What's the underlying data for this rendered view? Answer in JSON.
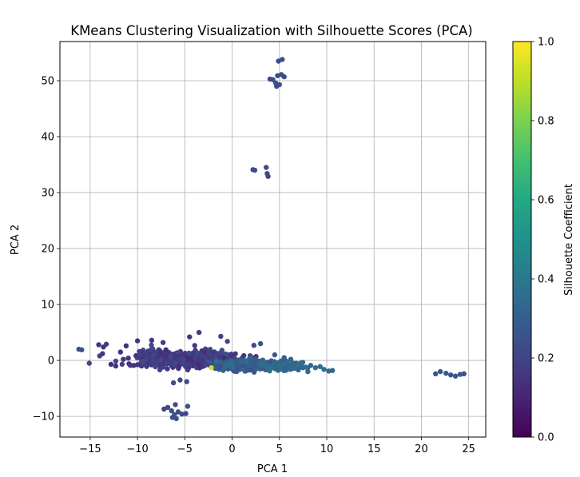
{
  "chart_data": {
    "type": "scatter",
    "title": "KMeans Clustering Visualization with Silhouette Scores (PCA)",
    "xlabel": "PCA 1",
    "ylabel": "PCA 2",
    "xlim": [
      -18.2,
      26.8
    ],
    "ylim": [
      -13.7,
      57.0
    ],
    "xticks": [
      -15,
      -10,
      -5,
      0,
      5,
      10,
      15,
      20,
      25
    ],
    "xtick_labels": [
      "−15",
      "−10",
      "−5",
      "0",
      "5",
      "10",
      "15",
      "20",
      "25"
    ],
    "yticks": [
      -10,
      0,
      10,
      20,
      30,
      40,
      50
    ],
    "ytick_labels": [
      "−10",
      "0",
      "10",
      "20",
      "30",
      "40",
      "50"
    ],
    "grid": true,
    "colormap": "viridis",
    "colorbar": {
      "label": "Silhouette Coefficient",
      "range": [
        0.0,
        1.0
      ],
      "ticks": [
        0.0,
        0.2,
        0.4,
        0.6,
        0.8,
        1.0
      ],
      "tick_labels": [
        "0.0",
        "0.2",
        "0.4",
        "0.6",
        "0.8",
        "1.0"
      ]
    },
    "points": [
      {
        "x": 4.9,
        "y": 53.5,
        "c": 0.22
      },
      {
        "x": 5.3,
        "y": 53.8,
        "c": 0.24
      },
      {
        "x": 4.3,
        "y": 50.2,
        "c": 0.23
      },
      {
        "x": 4.8,
        "y": 50.9,
        "c": 0.21
      },
      {
        "x": 5.5,
        "y": 50.7,
        "c": 0.22
      },
      {
        "x": 4.6,
        "y": 49.6,
        "c": 0.25
      },
      {
        "x": 5.0,
        "y": 49.3,
        "c": 0.23
      },
      {
        "x": 4.0,
        "y": 50.3,
        "c": 0.2
      },
      {
        "x": 5.2,
        "y": 51.1,
        "c": 0.24
      },
      {
        "x": 4.7,
        "y": 49.0,
        "c": 0.22
      },
      {
        "x": 2.2,
        "y": 34.1,
        "c": 0.22
      },
      {
        "x": 2.4,
        "y": 34.0,
        "c": 0.23
      },
      {
        "x": 3.6,
        "y": 34.5,
        "c": 0.21
      },
      {
        "x": 3.7,
        "y": 33.4,
        "c": 0.24
      },
      {
        "x": 3.8,
        "y": 32.9,
        "c": 0.22
      },
      {
        "x": -16.2,
        "y": 2.0,
        "c": 0.26
      },
      {
        "x": -15.9,
        "y": 1.9,
        "c": 0.24
      },
      {
        "x": -15.1,
        "y": -0.5,
        "c": 0.22
      },
      {
        "x": -14.1,
        "y": 2.8,
        "c": 0.15
      },
      {
        "x": -13.6,
        "y": 2.4,
        "c": 0.14
      },
      {
        "x": -13.3,
        "y": 2.9,
        "c": 0.18
      },
      {
        "x": -13.7,
        "y": 1.2,
        "c": 0.16
      },
      {
        "x": -14.0,
        "y": 0.8,
        "c": 0.18
      },
      {
        "x": -12.8,
        "y": -0.7,
        "c": 0.12
      },
      {
        "x": -12.3,
        "y": -1.0,
        "c": 0.14
      },
      {
        "x": -11.8,
        "y": 1.5,
        "c": 0.15
      },
      {
        "x": -11.2,
        "y": 2.6,
        "c": 0.13
      },
      {
        "x": -11.5,
        "y": 0.2,
        "c": 0.16
      },
      {
        "x": -10.9,
        "y": -0.6,
        "c": 0.15
      },
      {
        "x": -10.4,
        "y": -0.9,
        "c": 0.14
      },
      {
        "x": -10.0,
        "y": 3.5,
        "c": 0.16
      },
      {
        "x": 21.5,
        "y": -2.4,
        "c": 0.26
      },
      {
        "x": 22.0,
        "y": -2.0,
        "c": 0.27
      },
      {
        "x": 22.6,
        "y": -2.3,
        "c": 0.28
      },
      {
        "x": 23.1,
        "y": -2.6,
        "c": 0.26
      },
      {
        "x": 23.6,
        "y": -2.8,
        "c": 0.27
      },
      {
        "x": 24.1,
        "y": -2.5,
        "c": 0.28
      },
      {
        "x": 24.5,
        "y": -2.4,
        "c": 0.26
      },
      {
        "x": -7.2,
        "y": -8.7,
        "c": 0.22
      },
      {
        "x": -6.8,
        "y": -8.4,
        "c": 0.21
      },
      {
        "x": -6.4,
        "y": -9.0,
        "c": 0.24
      },
      {
        "x": -6.0,
        "y": -7.9,
        "c": 0.23
      },
      {
        "x": -5.7,
        "y": -9.2,
        "c": 0.22
      },
      {
        "x": -6.1,
        "y": -9.7,
        "c": 0.26
      },
      {
        "x": -5.9,
        "y": -10.4,
        "c": 0.25
      },
      {
        "x": -6.3,
        "y": -10.2,
        "c": 0.23
      },
      {
        "x": -5.3,
        "y": -9.6,
        "c": 0.22
      },
      {
        "x": -4.7,
        "y": -8.2,
        "c": 0.24
      },
      {
        "x": -4.9,
        "y": -9.5,
        "c": 0.21
      },
      {
        "x": 6.5,
        "y": -0.8,
        "c": 0.34
      },
      {
        "x": 7.2,
        "y": -0.5,
        "c": 0.35
      },
      {
        "x": 7.8,
        "y": -1.2,
        "c": 0.36
      },
      {
        "x": 8.3,
        "y": -0.9,
        "c": 0.33
      },
      {
        "x": 8.8,
        "y": -1.3,
        "c": 0.35
      },
      {
        "x": 9.3,
        "y": -1.1,
        "c": 0.36
      },
      {
        "x": 9.7,
        "y": -1.6,
        "c": 0.34
      },
      {
        "x": 10.2,
        "y": -1.9,
        "c": 0.35
      },
      {
        "x": 10.6,
        "y": -1.8,
        "c": 0.33
      },
      {
        "x": 7.0,
        "y": -1.7,
        "c": 0.32
      },
      {
        "x": 8.0,
        "y": -2.0,
        "c": 0.34
      },
      {
        "x": 6.0,
        "y": -1.5,
        "c": 0.33
      },
      {
        "x": 5.5,
        "y": 0.5,
        "c": 0.31
      },
      {
        "x": 6.2,
        "y": 0.2,
        "c": 0.32
      },
      {
        "x": 3.0,
        "y": 3.0,
        "c": 0.25
      },
      {
        "x": 2.3,
        "y": 2.7,
        "c": 0.22
      },
      {
        "x": 4.5,
        "y": 1.0,
        "c": 0.28
      },
      {
        "x": -3.5,
        "y": 5.0,
        "c": 0.18
      },
      {
        "x": -4.5,
        "y": 4.2,
        "c": 0.16
      },
      {
        "x": -1.2,
        "y": 4.3,
        "c": 0.19
      },
      {
        "x": -0.5,
        "y": 3.4,
        "c": 0.21
      },
      {
        "x": -7.3,
        "y": 3.2,
        "c": 0.17
      },
      {
        "x": -8.5,
        "y": 3.6,
        "c": 0.15
      },
      {
        "x": -5.5,
        "y": -3.5,
        "c": 0.22
      },
      {
        "x": -6.2,
        "y": -4.0,
        "c": 0.24
      },
      {
        "x": -4.8,
        "y": -3.8,
        "c": 0.23
      },
      {
        "x": -2.2,
        "y": -1.3,
        "c": 0.92
      }
    ],
    "dense_regions": [
      {
        "cx": -3.5,
        "cy": 0.2,
        "sx": 3.4,
        "sy": 1.15,
        "n": 620,
        "c_min": 0.12,
        "c_max": 0.24
      },
      {
        "cx": 1.5,
        "cy": -0.9,
        "sx": 2.6,
        "sy": 0.8,
        "n": 420,
        "c_min": 0.24,
        "c_max": 0.36
      },
      {
        "cx": -8.2,
        "cy": 0.5,
        "sx": 1.8,
        "sy": 1.3,
        "n": 180,
        "c_min": 0.13,
        "c_max": 0.22
      },
      {
        "cx": 5.6,
        "cy": -1.1,
        "sx": 1.8,
        "sy": 0.55,
        "n": 160,
        "c_min": 0.3,
        "c_max": 0.37
      }
    ]
  }
}
